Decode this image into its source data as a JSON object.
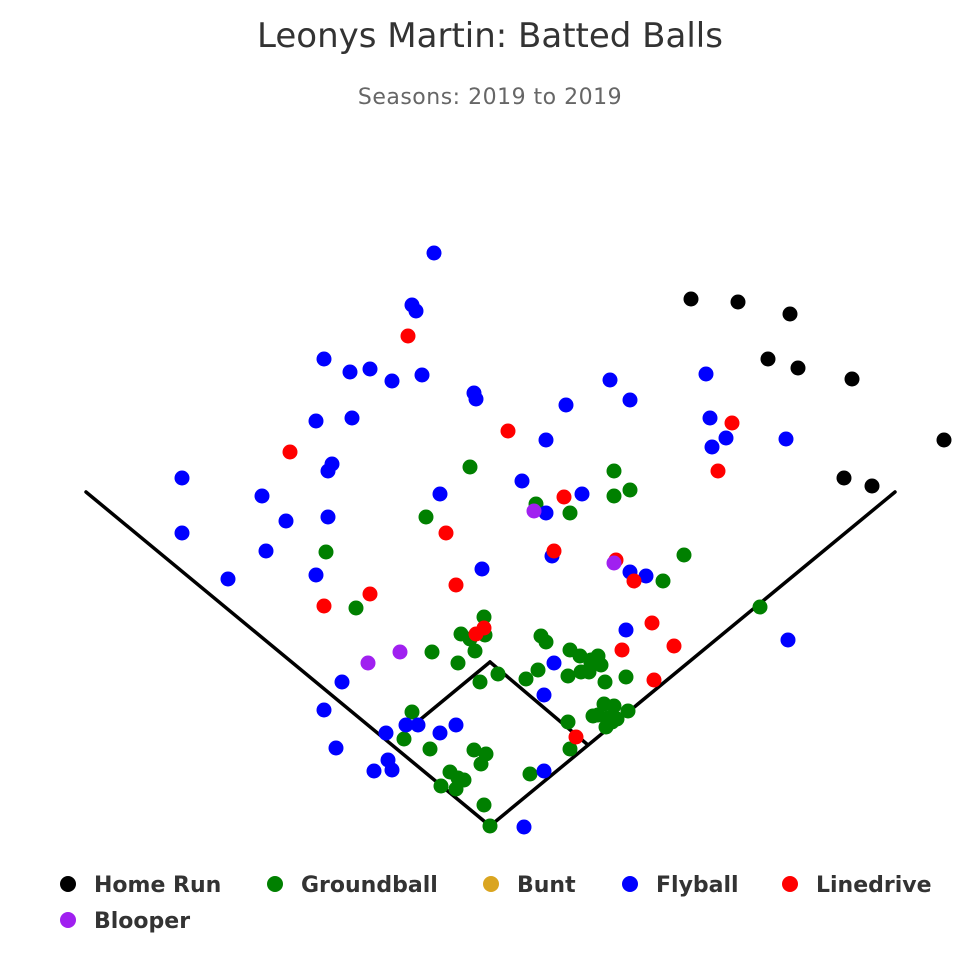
{
  "chart_data": {
    "type": "scatter",
    "title": "Leonys Martin: Batted Balls",
    "subtitle": "Seasons: 2019 to 2019",
    "legend_position": "bottom",
    "series": [
      {
        "name": "Home Run",
        "color": "#000000",
        "points": [
          [
            691,
            299
          ],
          [
            738,
            302
          ],
          [
            790,
            314
          ],
          [
            768,
            359
          ],
          [
            798,
            368
          ],
          [
            852,
            379
          ],
          [
            944,
            440
          ],
          [
            844,
            478
          ],
          [
            872,
            486
          ]
        ]
      },
      {
        "name": "Groundball",
        "color": "#008000",
        "points": [
          [
            470,
            467
          ],
          [
            614,
            471
          ],
          [
            630,
            490
          ],
          [
            614,
            496
          ],
          [
            570,
            513
          ],
          [
            536,
            504
          ],
          [
            426,
            517
          ],
          [
            326,
            552
          ],
          [
            684,
            555
          ],
          [
            663,
            581
          ],
          [
            760,
            607
          ],
          [
            356,
            608
          ],
          [
            484,
            617
          ],
          [
            461,
            634
          ],
          [
            485,
            635
          ],
          [
            470,
            639
          ],
          [
            475,
            651
          ],
          [
            432,
            652
          ],
          [
            458,
            663
          ],
          [
            541,
            636
          ],
          [
            546,
            642
          ],
          [
            570,
            650
          ],
          [
            580,
            656
          ],
          [
            598,
            656
          ],
          [
            591,
            660
          ],
          [
            601,
            665
          ],
          [
            589,
            672
          ],
          [
            581,
            672
          ],
          [
            568,
            676
          ],
          [
            538,
            670
          ],
          [
            526,
            679
          ],
          [
            480,
            682
          ],
          [
            498,
            674
          ],
          [
            605,
            682
          ],
          [
            626,
            677
          ],
          [
            604,
            704
          ],
          [
            614,
            706
          ],
          [
            628,
            711
          ],
          [
            598,
            715
          ],
          [
            608,
            718
          ],
          [
            617,
            719
          ],
          [
            612,
            722
          ],
          [
            593,
            716
          ],
          [
            606,
            727
          ],
          [
            412,
            712
          ],
          [
            404,
            739
          ],
          [
            430,
            749
          ],
          [
            474,
            750
          ],
          [
            486,
            754
          ],
          [
            481,
            764
          ],
          [
            450,
            772
          ],
          [
            458,
            778
          ],
          [
            464,
            780
          ],
          [
            441,
            786
          ],
          [
            456,
            789
          ],
          [
            484,
            805
          ],
          [
            490,
            826
          ],
          [
            568,
            722
          ],
          [
            570,
            749
          ],
          [
            530,
            774
          ],
          [
            591,
            663
          ]
        ]
      },
      {
        "name": "Bunt",
        "color": "#DAA520",
        "points": []
      },
      {
        "name": "Flyball",
        "color": "#0000FF",
        "points": [
          [
            434,
            253
          ],
          [
            412,
            305
          ],
          [
            416,
            311
          ],
          [
            324,
            359
          ],
          [
            350,
            372
          ],
          [
            370,
            369
          ],
          [
            392,
            381
          ],
          [
            422,
            375
          ],
          [
            474,
            393
          ],
          [
            476,
            399
          ],
          [
            610,
            380
          ],
          [
            706,
            374
          ],
          [
            630,
            400
          ],
          [
            566,
            405
          ],
          [
            352,
            418
          ],
          [
            316,
            421
          ],
          [
            546,
            440
          ],
          [
            710,
            418
          ],
          [
            726,
            438
          ],
          [
            712,
            447
          ],
          [
            786,
            439
          ],
          [
            332,
            464
          ],
          [
            328,
            471
          ],
          [
            182,
            478
          ],
          [
            262,
            496
          ],
          [
            440,
            494
          ],
          [
            522,
            481
          ],
          [
            582,
            494
          ],
          [
            286,
            521
          ],
          [
            328,
            517
          ],
          [
            182,
            533
          ],
          [
            266,
            551
          ],
          [
            546,
            513
          ],
          [
            552,
            556
          ],
          [
            482,
            569
          ],
          [
            316,
            575
          ],
          [
            228,
            579
          ],
          [
            630,
            572
          ],
          [
            646,
            576
          ],
          [
            626,
            630
          ],
          [
            788,
            640
          ],
          [
            554,
            663
          ],
          [
            342,
            682
          ],
          [
            544,
            695
          ],
          [
            324,
            710
          ],
          [
            456,
            725
          ],
          [
            406,
            725
          ],
          [
            418,
            725
          ],
          [
            440,
            733
          ],
          [
            386,
            733
          ],
          [
            336,
            748
          ],
          [
            388,
            760
          ],
          [
            374,
            771
          ],
          [
            392,
            770
          ],
          [
            544,
            771
          ],
          [
            524,
            827
          ]
        ]
      },
      {
        "name": "Linedrive",
        "color": "#FF0000",
        "points": [
          [
            408,
            336
          ],
          [
            290,
            452
          ],
          [
            508,
            431
          ],
          [
            732,
            423
          ],
          [
            718,
            471
          ],
          [
            564,
            497
          ],
          [
            446,
            533
          ],
          [
            554,
            551
          ],
          [
            616,
            560
          ],
          [
            634,
            581
          ],
          [
            456,
            585
          ],
          [
            370,
            594
          ],
          [
            324,
            606
          ],
          [
            484,
            628
          ],
          [
            476,
            634
          ],
          [
            652,
            623
          ],
          [
            622,
            650
          ],
          [
            674,
            646
          ],
          [
            654,
            680
          ],
          [
            576,
            737
          ]
        ]
      },
      {
        "name": "Blooper",
        "color": "#A020F0",
        "points": [
          [
            534,
            511
          ],
          [
            614,
            563
          ],
          [
            368,
            663
          ],
          [
            400,
            652
          ]
        ]
      }
    ]
  }
}
